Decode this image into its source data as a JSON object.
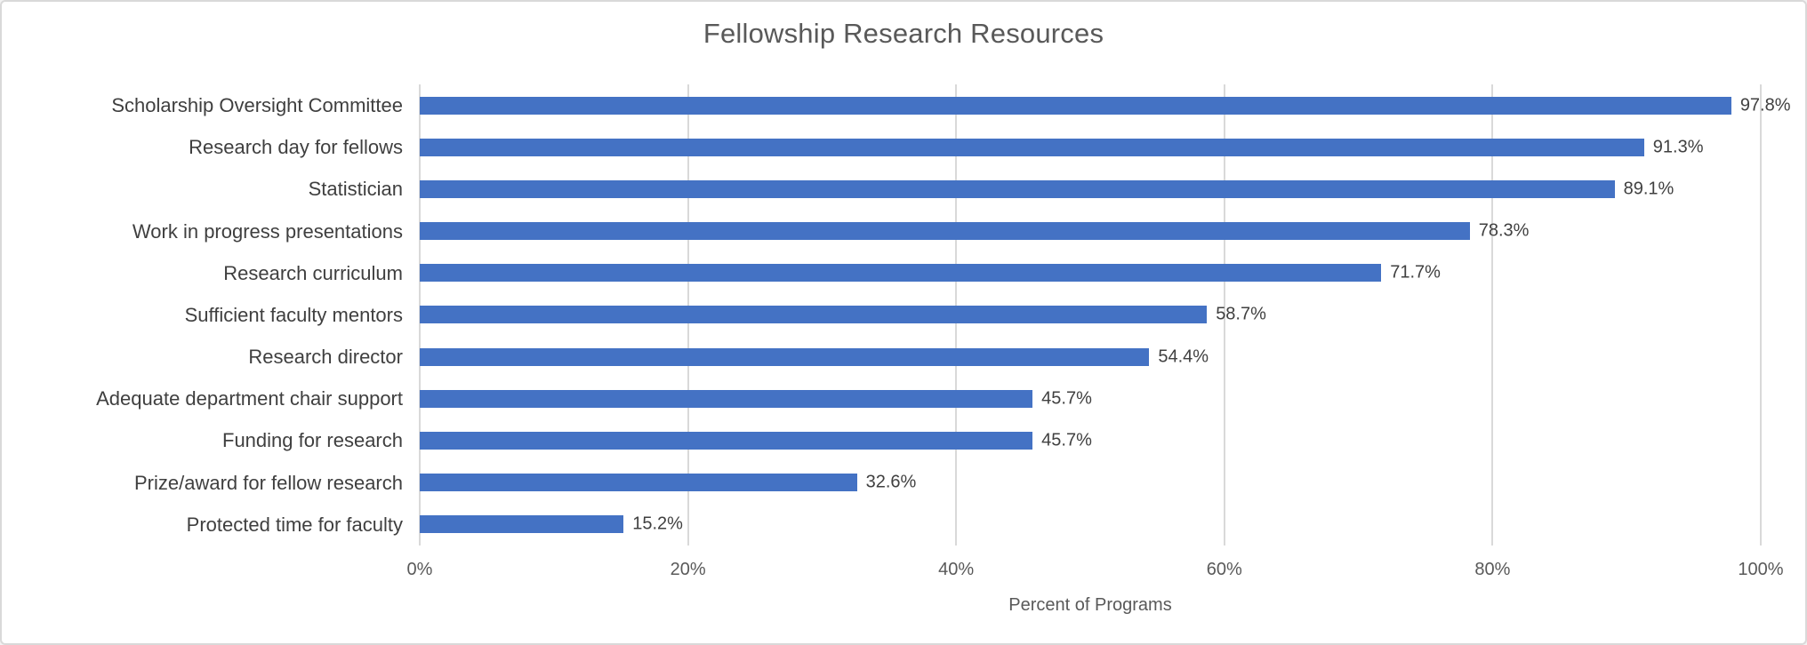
{
  "chart_data": {
    "type": "bar",
    "orientation": "horizontal",
    "title": "Fellowship Research Resources",
    "categories": [
      "Scholarship Oversight Committee",
      "Research day for fellows",
      "Statistician",
      "Work in progress presentations",
      "Research curriculum",
      "Sufficient faculty mentors",
      "Research director",
      "Adequate department chair support",
      "Funding for research",
      "Prize/award for fellow research",
      "Protected time for faculty"
    ],
    "values": [
      97.8,
      91.3,
      89.1,
      78.3,
      71.7,
      58.7,
      54.4,
      45.7,
      45.7,
      32.6,
      15.2
    ],
    "value_labels": [
      "97.8%",
      "91.3%",
      "89.1%",
      "78.3%",
      "71.7%",
      "58.7%",
      "54.4%",
      "45.7%",
      "45.7%",
      "32.6%",
      "15.2%"
    ],
    "xlabel": "Percent of Programs",
    "xlim": [
      0,
      100
    ],
    "x_ticks": [
      {
        "value": 0,
        "label": "0%"
      },
      {
        "value": 20,
        "label": "20%"
      },
      {
        "value": 40,
        "label": "40%"
      },
      {
        "value": 60,
        "label": "60%"
      },
      {
        "value": 80,
        "label": "80%"
      },
      {
        "value": 100,
        "label": "100%"
      }
    ],
    "grid": "vertical-gridlines-on",
    "legend": "none",
    "colors": {
      "bar": "#4472C4",
      "gridline": "#d9d9d9",
      "title_text": "#595959",
      "label_text": "#3f3f3f",
      "value_text": "#404040",
      "tick_text": "#595959"
    }
  }
}
